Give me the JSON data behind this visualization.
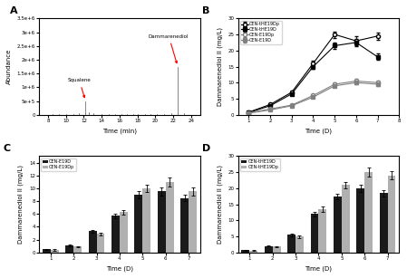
{
  "A": {
    "xlabel": "Time (min)",
    "ylabel": "Abundance",
    "xlim": [
      7,
      25
    ],
    "ylim": [
      0,
      3500000
    ],
    "yticks": [
      0,
      500000,
      1000000,
      1500000,
      2000000,
      2500000,
      3000000,
      3500000
    ],
    "ytick_labels": [
      "0",
      "5e+5",
      "1e+6",
      "1.5e+6",
      "2e+6",
      "2.5e+6",
      "3e+6",
      "3.5e+6"
    ],
    "squalene_x": 12.2,
    "squalene_y": 450000,
    "squalene_peak_x": 12.2,
    "squalene_peak_y": 500000,
    "dammarenediol_x": 22.5,
    "dammarenediol_y": 1700000,
    "dammarenediol_peak_x": 22.5,
    "dammarenediol_peak_y": 1800000,
    "noise_peaks_x": [
      8.5,
      9.2,
      10.0,
      10.8,
      11.5,
      12.2,
      12.6,
      13.1,
      14.0,
      14.8,
      15.5,
      16.2,
      16.8,
      17.5,
      18.0,
      18.8,
      19.5,
      20.2,
      21.0,
      21.8,
      22.5,
      23.2
    ],
    "noise_peaks_y": [
      30000,
      20000,
      25000,
      40000,
      60000,
      490000,
      80000,
      50000,
      20000,
      15000,
      20000,
      18000,
      15000,
      20000,
      25000,
      20000,
      18000,
      22000,
      30000,
      50000,
      1750000,
      60000
    ]
  },
  "B": {
    "xlabel": "Time (D)",
    "ylabel": "Dammarenediol II (mg/L)",
    "xlim": [
      0.5,
      8
    ],
    "ylim": [
      0,
      30
    ],
    "yticks": [
      0,
      5,
      10,
      15,
      20,
      25,
      30
    ],
    "xticks": [
      1,
      2,
      3,
      4,
      5,
      6,
      7,
      8
    ],
    "days": [
      1,
      2,
      3,
      4,
      5,
      6,
      7
    ],
    "CEN_tHE19Dp": [
      0.8,
      3.2,
      7.0,
      16.0,
      25.0,
      23.0,
      24.5
    ],
    "CEN_tHE19Dp_err": [
      0.1,
      0.3,
      0.5,
      0.8,
      1.0,
      1.5,
      1.2
    ],
    "CEN_tHE19D": [
      0.7,
      2.8,
      6.5,
      15.0,
      21.5,
      22.5,
      18.0
    ],
    "CEN_tHE19D_err": [
      0.1,
      0.2,
      0.4,
      0.7,
      0.9,
      1.2,
      1.0
    ],
    "CEN_E19Dp": [
      0.6,
      1.8,
      3.0,
      6.0,
      9.5,
      10.5,
      10.0
    ],
    "CEN_E19Dp_err": [
      0.1,
      0.2,
      0.3,
      0.4,
      0.5,
      0.6,
      0.5
    ],
    "CEN_E19D": [
      0.5,
      1.5,
      2.8,
      5.5,
      9.0,
      10.0,
      9.5
    ],
    "CEN_E19D_err": [
      0.1,
      0.15,
      0.25,
      0.35,
      0.45,
      0.5,
      0.45
    ],
    "legend": [
      "CEN-tHE19Dp",
      "CEN-tHE19D",
      "CEN-E19Dp",
      "CEN-E19D"
    ]
  },
  "C": {
    "xlabel": "Time (D)",
    "ylabel": "Dammarenediol II (mg/L)",
    "xlim": [
      0.5,
      7.5
    ],
    "ylim": [
      0,
      15
    ],
    "yticks": [
      0,
      2,
      4,
      6,
      8,
      10,
      12,
      14
    ],
    "xticks": [
      1,
      2,
      3,
      4,
      5,
      6,
      7
    ],
    "days": [
      1,
      2,
      3,
      4,
      5,
      6,
      7
    ],
    "CEN_E19D": [
      0.5,
      1.1,
      3.3,
      5.7,
      9.0,
      9.5,
      8.5
    ],
    "CEN_E19D_err": [
      0.1,
      0.15,
      0.2,
      0.3,
      0.5,
      0.6,
      0.5
    ],
    "CEN_E19Dp": [
      0.4,
      0.9,
      2.9,
      6.3,
      10.0,
      11.0,
      9.5
    ],
    "CEN_E19Dp_err": [
      0.1,
      0.12,
      0.2,
      0.35,
      0.55,
      0.7,
      0.6
    ],
    "legend": [
      "CEN-E19D",
      "CEN-E19Dp"
    ],
    "bar_colors": [
      "#1a1a1a",
      "#b0b0b0"
    ]
  },
  "D": {
    "xlabel": "Time (D)",
    "ylabel": "Dammarenediol II (mg/L)",
    "xlim": [
      0.5,
      7.5
    ],
    "ylim": [
      0,
      30
    ],
    "yticks": [
      0,
      5,
      10,
      15,
      20,
      25,
      30
    ],
    "xticks": [
      1,
      2,
      3,
      4,
      5,
      6,
      7
    ],
    "days": [
      1,
      2,
      3,
      4,
      5,
      6,
      7
    ],
    "CEN_tHE19D": [
      0.7,
      2.0,
      5.5,
      12.0,
      17.5,
      20.0,
      18.5
    ],
    "CEN_tHE19D_err": [
      0.1,
      0.2,
      0.4,
      0.7,
      0.9,
      1.2,
      1.0
    ],
    "CEN_tHE19Dp": [
      0.6,
      1.8,
      5.0,
      13.5,
      21.0,
      25.0,
      24.0
    ],
    "CEN_tHE19Dp_err": [
      0.1,
      0.2,
      0.45,
      0.8,
      1.0,
      1.5,
      1.3
    ],
    "legend": [
      "CEN-tHE19D",
      "CEN-tHE19Dp"
    ],
    "bar_colors": [
      "#1a1a1a",
      "#b0b0b0"
    ]
  }
}
